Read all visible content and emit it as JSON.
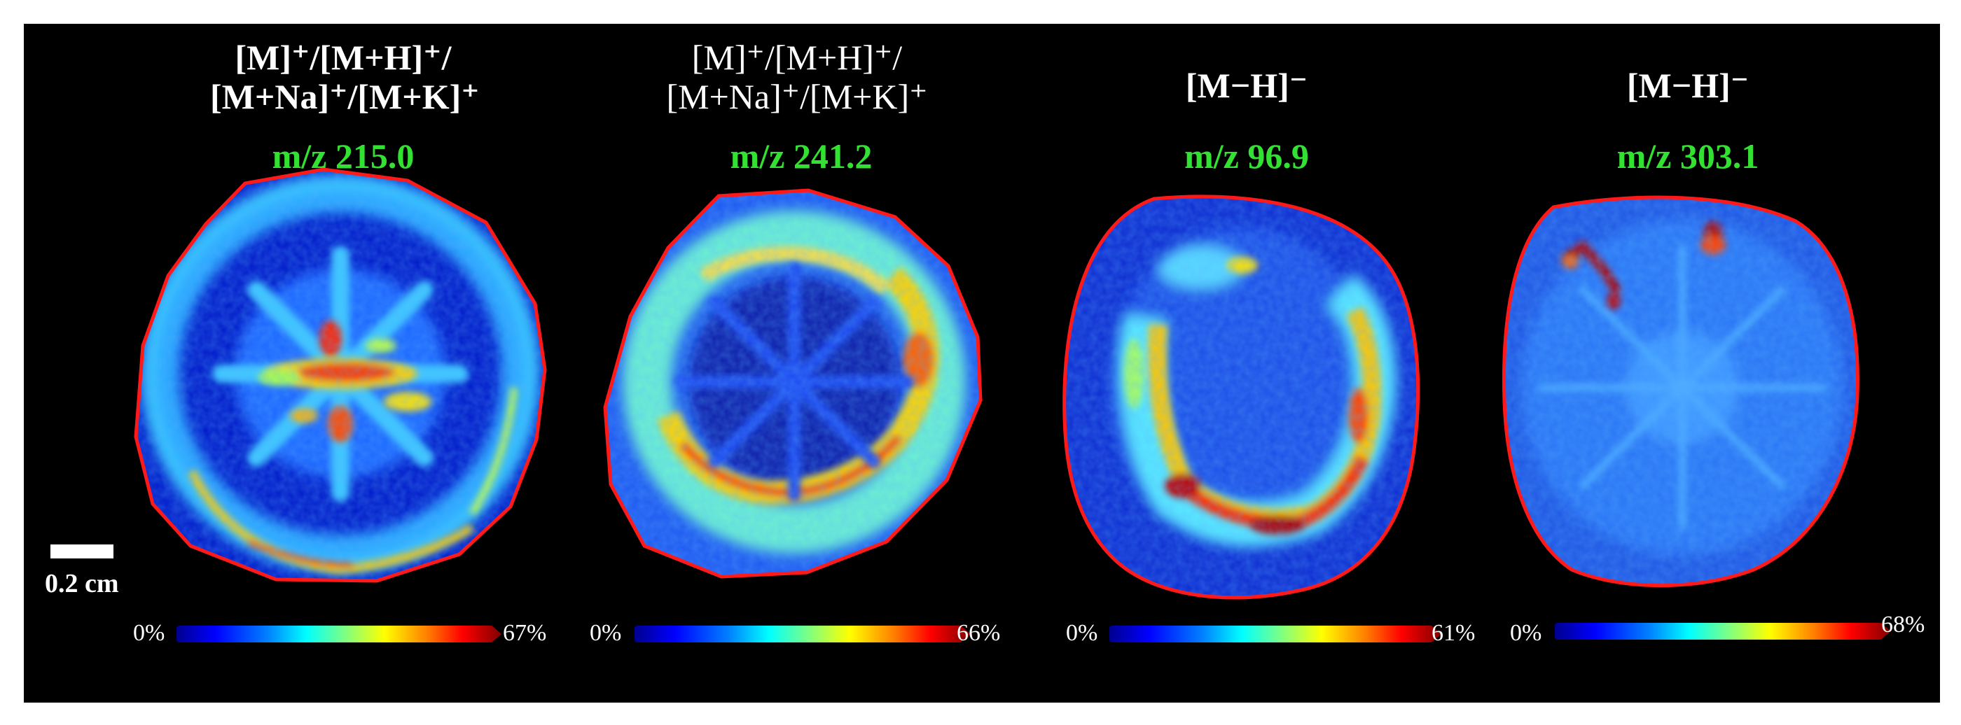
{
  "panels": [
    {
      "adduct_lines": [
        "[M]⁺/[M+H]⁺/",
        "[M+Na]⁺/[M+K]⁺"
      ],
      "mz_label": "m/z 215.0",
      "colorbar": {
        "min_label": "0%",
        "max_label": "67%",
        "max_fraction": 0.67
      }
    },
    {
      "adduct_lines": [
        "[M]⁺/[M+H]⁺/",
        "[M+Na]⁺/[M+K]⁺"
      ],
      "mz_label": "m/z 241.2",
      "colorbar": {
        "min_label": "0%",
        "max_label": "66%",
        "max_fraction": 0.66
      }
    },
    {
      "adduct_lines": [
        "[M−H]⁻"
      ],
      "mz_label": "m/z 96.9",
      "colorbar": {
        "min_label": "0%",
        "max_label": "61%",
        "max_fraction": 0.61
      }
    },
    {
      "adduct_lines": [
        "[M−H]⁻"
      ],
      "mz_label": "m/z 303.1",
      "colorbar": {
        "min_label": "0%",
        "max_label": "68%",
        "max_fraction": 0.68
      }
    }
  ],
  "scale_bar": {
    "label": "0.2 cm"
  },
  "colors": {
    "background": "#000000",
    "outline": "#ff1a1a",
    "mz_label": "#33e133",
    "colormap": [
      "#00008f",
      "#0000ff",
      "#00ffff",
      "#ffff00",
      "#ff0000",
      "#800000"
    ]
  }
}
